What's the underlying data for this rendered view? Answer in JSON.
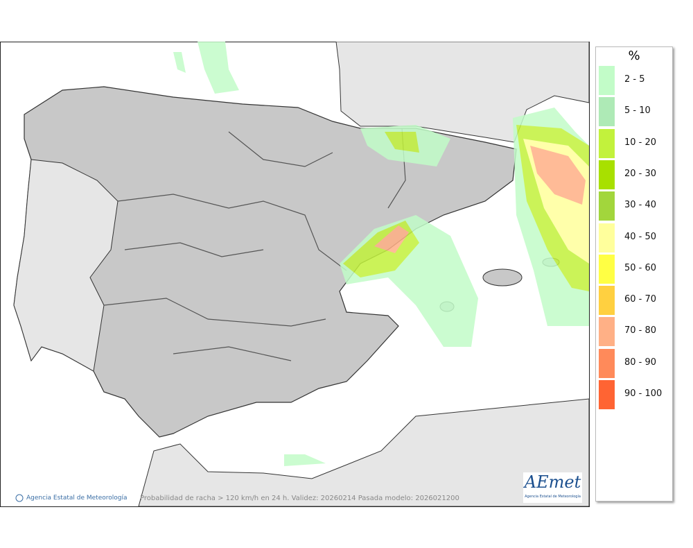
{
  "legend": {
    "title": "%",
    "items": [
      {
        "label": "2 - 5",
        "color": "#c2fcc8"
      },
      {
        "label": "5 - 10",
        "color": "#aeeab6"
      },
      {
        "label": "10 - 20",
        "color": "#c2f23c"
      },
      {
        "label": "20 - 30",
        "color": "#a8e000"
      },
      {
        "label": "30 - 40",
        "color": "#a2d63c"
      },
      {
        "label": "40 - 50",
        "color": "#ffff9c"
      },
      {
        "label": "50 - 60",
        "color": "#ffff44"
      },
      {
        "label": "60 - 70",
        "color": "#ffd040"
      },
      {
        "label": "70 - 80",
        "color": "#ffb086"
      },
      {
        "label": "80 - 90",
        "color": "#ff8a5a"
      },
      {
        "label": "90 - 100",
        "color": "#ff6433"
      }
    ]
  },
  "footer": {
    "attribution": "Agencia Estatal de Meteorología",
    "caption": "Probabilidad de racha > 120 km/h en 24 h. Validez: 20260214 Pasada modelo: 2026021200"
  },
  "logo": {
    "name": "AEmet",
    "subtitle": "Agencia Estatal de Meteorología"
  }
}
